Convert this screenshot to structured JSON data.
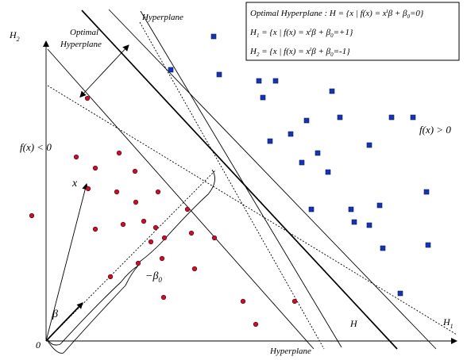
{
  "labels": {
    "hyperplane_top": "Hyperplane",
    "optimal_line1": "Optimal",
    "optimal_line2": "Hyperplane",
    "h2": "H",
    "h2_sub": "2",
    "h1": "H",
    "h1_sub": "1",
    "h": "H",
    "hyperplane_bottom": "Hyperplane",
    "origin": "0",
    "x_vector": "x",
    "beta": "β",
    "neg_beta_prefix": "−β",
    "neg_beta_sub": "0",
    "f_left": "f(x) < 0",
    "f_right": "f(x) > 0"
  },
  "legend": {
    "line1_a": "Optimal Hyperplane : H = {x | f(x) = x",
    "line1_sup": "t",
    "line1_b": "β + β",
    "line1_sub": "0",
    "line1_c": "=0}",
    "line2_a": "H",
    "line2_sub1": "1",
    "line2_b": " = {x | f(x) = x",
    "line2_sup": "t",
    "line2_c": "β + β",
    "line2_sub2": "0",
    "line2_d": "=+1}",
    "line3_a": "H",
    "line3_sub1": "2",
    "line3_b": " = {x | f(x) = x",
    "line3_sup": "t",
    "line3_c": "β + β",
    "line3_sub2": "0",
    "line3_d": "=-1}"
  },
  "colors": {
    "class_negative": "#c8102e",
    "class_positive": "#1535b0"
  },
  "red_points": [
    [
      40,
      272
    ],
    [
      110,
      124
    ],
    [
      96,
      198
    ],
    [
      150,
      193
    ],
    [
      120,
      212
    ],
    [
      170,
      216
    ],
    [
      111,
      238
    ],
    [
      147,
      242
    ],
    [
      171,
      255
    ],
    [
      199,
      242
    ],
    [
      236,
      264
    ],
    [
      120,
      289
    ],
    [
      155,
      283
    ],
    [
      181,
      279
    ],
    [
      196,
      287
    ],
    [
      207,
      300
    ],
    [
      190,
      305
    ],
    [
      241,
      294
    ],
    [
      270,
      300
    ],
    [
      204,
      326
    ],
    [
      174,
      332
    ],
    [
      139,
      349
    ],
    [
      245,
      339
    ],
    [
      206,
      375
    ],
    [
      306,
      380
    ],
    [
      322,
      409
    ],
    [
      371,
      380
    ]
  ],
  "blue_points": [
    [
      269,
      46
    ],
    [
      215,
      88
    ],
    [
      276,
      94
    ],
    [
      326,
      102
    ],
    [
      347,
      102
    ],
    [
      331,
      123
    ],
    [
      418,
      115
    ],
    [
      386,
      152
    ],
    [
      428,
      148
    ],
    [
      493,
      148
    ],
    [
      520,
      148
    ],
    [
      340,
      178
    ],
    [
      366,
      169
    ],
    [
      400,
      193
    ],
    [
      380,
      205
    ],
    [
      465,
      183
    ],
    [
      413,
      217
    ],
    [
      537,
      242
    ],
    [
      392,
      264
    ],
    [
      442,
      264
    ],
    [
      478,
      259
    ],
    [
      446,
      280
    ],
    [
      465,
      284
    ],
    [
      482,
      313
    ],
    [
      539,
      309
    ],
    [
      504,
      370
    ]
  ]
}
